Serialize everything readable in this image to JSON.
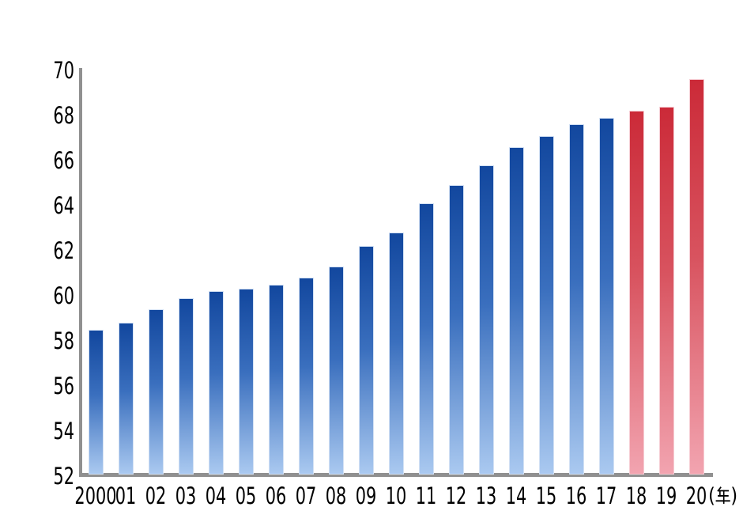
{
  "chart_data": {
    "type": "bar",
    "title": "",
    "categories": [
      "2000",
      "01",
      "02",
      "03",
      "04",
      "05",
      "06",
      "07",
      "08",
      "09",
      "10",
      "11",
      "12",
      "13",
      "14",
      "15",
      "16",
      "17",
      "18",
      "19",
      "20"
    ],
    "values": [
      58.5,
      58.8,
      59.4,
      59.9,
      60.2,
      60.3,
      60.5,
      60.8,
      61.3,
      62.2,
      62.8,
      64.1,
      64.9,
      65.8,
      66.6,
      67.1,
      67.6,
      67.9,
      68.2,
      68.4,
      69.6
    ],
    "highlighted_categories": [
      "18",
      "19",
      "20"
    ],
    "series_note": "single series; bars 2000-17 blue gradient, bars 18-20 red gradient",
    "xlabel": "",
    "ylabel": "",
    "x_axis_unit": "(年)",
    "unit_open": "(",
    "unit_kanji": "年",
    "unit_close": ")",
    "ylim": [
      52,
      70
    ],
    "y_ticks": [
      52,
      54,
      56,
      58,
      60,
      62,
      64,
      66,
      68,
      70
    ],
    "grid": "off",
    "legend": "none",
    "colors": {
      "bar_blue_top": "#12479e",
      "bar_blue_bottom": "#aac9f0",
      "bar_blue_border": "#d3e1f4",
      "bar_red_top": "#cb2a38",
      "bar_red_bottom": "#f2a4b0",
      "bar_red_border": "#f6ccd3",
      "axis": "#909090",
      "label": "#000000"
    }
  }
}
